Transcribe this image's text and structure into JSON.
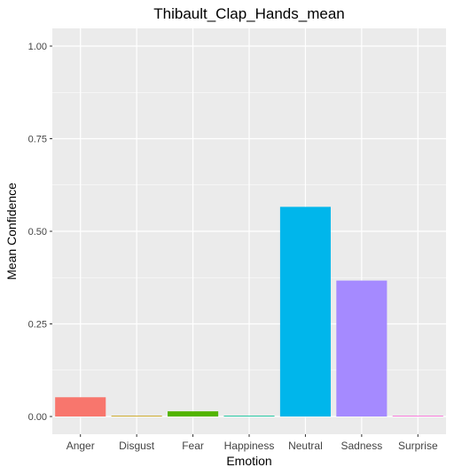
{
  "chart_data": {
    "type": "bar",
    "title": "Thibault_Clap_Hands_mean",
    "xlabel": "Emotion",
    "ylabel": "Mean Confidence",
    "categories": [
      "Anger",
      "Disgust",
      "Fear",
      "Happiness",
      "Neutral",
      "Sadness",
      "Surprise"
    ],
    "values": [
      0.052,
      0.0,
      0.014,
      0.002,
      0.566,
      0.367,
      0.001
    ],
    "colors": [
      "#F8766D",
      "#C49A00",
      "#53B400",
      "#00C094",
      "#00B6EB",
      "#A58AFF",
      "#FB61D7"
    ],
    "ylim": [
      0,
      1.0
    ],
    "yticks": [
      0.0,
      0.25,
      0.5,
      0.75,
      1.0
    ],
    "ytick_labels": [
      "0.00",
      "0.25",
      "0.50",
      "0.75",
      "1.00"
    ],
    "grid": true,
    "panel_background": "#EBEBEB",
    "grid_color": "#FFFFFF"
  }
}
